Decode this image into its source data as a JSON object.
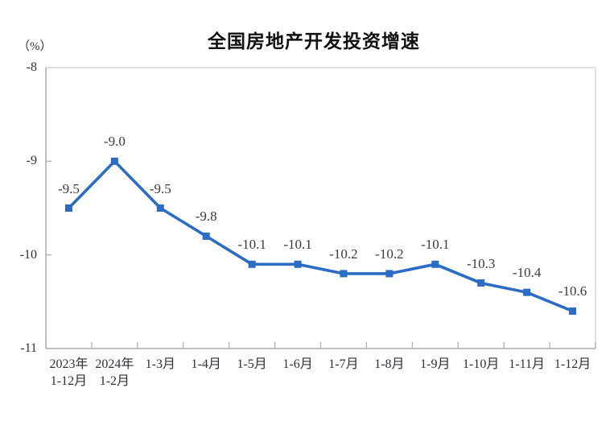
{
  "chart_data": {
    "type": "line",
    "title": "全国房地产开发投资增速",
    "unit_label": "（%）",
    "categories": [
      [
        "2023年",
        "1-12月"
      ],
      [
        "2024年",
        "1-2月"
      ],
      [
        "1-3月"
      ],
      [
        "1-4月"
      ],
      [
        "1-5月"
      ],
      [
        "1-6月"
      ],
      [
        "1-7月"
      ],
      [
        "1-8月"
      ],
      [
        "1-9月"
      ],
      [
        "1-10月"
      ],
      [
        "1-11月"
      ],
      [
        "1-12月"
      ]
    ],
    "values": [
      -9.5,
      -9.0,
      -9.5,
      -9.8,
      -10.1,
      -10.1,
      -10.2,
      -10.2,
      -10.1,
      -10.3,
      -10.4,
      -10.6
    ],
    "data_labels": [
      "-9.5",
      "-9.0",
      "-9.5",
      "-9.8",
      "-10.1",
      "-10.1",
      "-10.2",
      "-10.2",
      "-10.1",
      "-10.3",
      "-10.4",
      "-10.6"
    ],
    "ylim": [
      -11,
      -8
    ],
    "yticks": [
      -8,
      -9,
      -10,
      -11
    ],
    "grid": false,
    "legend": "none",
    "marker": "square",
    "colors": {
      "line": "#2B6CC4",
      "marker": "#2B6CC4",
      "data_label": "#3a3a44",
      "tick_label": "#2f2f38",
      "axis": "#ababab",
      "border": "#d6d6d6",
      "title": "#111111"
    }
  }
}
